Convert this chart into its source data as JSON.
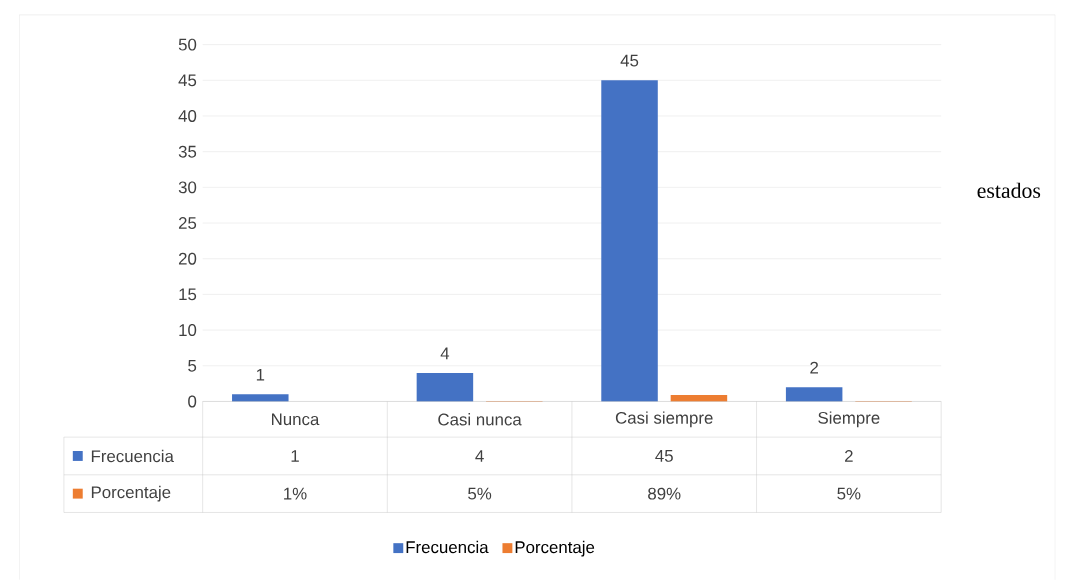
{
  "chart_data": {
    "type": "bar",
    "categories": [
      "Nunca",
      "Casi nunca",
      "Casi siempre",
      "Siempre"
    ],
    "series": [
      {
        "name": "Frecuencia",
        "color": "#4472c4",
        "values": [
          1,
          4,
          45,
          2
        ],
        "value_labels": [
          "1",
          "4",
          "45",
          "2"
        ]
      },
      {
        "name": "Porcentaje",
        "color": "#ed7d31",
        "values": [
          0.01,
          0.05,
          0.89,
          0.05
        ],
        "value_labels": [
          "1%",
          "5%",
          "89%",
          "5%"
        ]
      }
    ],
    "ylim": [
      0,
      50
    ],
    "yticks": [
      0,
      5,
      10,
      15,
      20,
      25,
      30,
      35,
      40,
      45,
      50
    ],
    "grid": "y",
    "legend": "bottom",
    "data_labels": true,
    "annotations": [
      "estados"
    ]
  }
}
